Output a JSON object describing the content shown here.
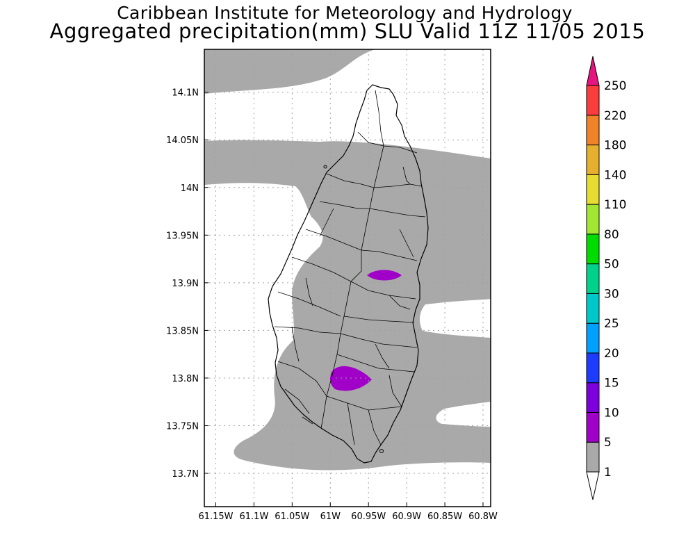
{
  "title_line1": "Caribbean Institute for Meteorology and Hydrology",
  "title_line2": "Aggregated precipitation(mm) SLU Valid 11Z 11/05 2015",
  "map": {
    "lon_ticks": [
      "61.15W",
      "61.1W",
      "61.05W",
      "61W",
      "60.95W",
      "60.9W",
      "60.85W",
      "60.8W"
    ],
    "lat_ticks": [
      "14.1N",
      "14.05N",
      "14N",
      "13.95N",
      "13.9N",
      "13.85N",
      "13.8N",
      "13.75N",
      "13.7N"
    ],
    "lon_range": [
      -61.165,
      -60.79
    ],
    "lat_range": [
      13.665,
      14.145
    ],
    "grid": true
  },
  "colorbar": {
    "levels": [
      "1",
      "5",
      "10",
      "15",
      "20",
      "25",
      "30",
      "50",
      "80",
      "110",
      "140",
      "180",
      "220",
      "250"
    ],
    "colors": [
      "#a9a9a9",
      "#a100c8",
      "#7d00dc",
      "#1e3cff",
      "#00a0ff",
      "#00c8c8",
      "#00d28c",
      "#00dc00",
      "#a0e632",
      "#e6dc32",
      "#e6af2d",
      "#f08228",
      "#fa3c3c",
      "#f00082"
    ],
    "below_color": "#ffffff",
    "above_color": "#e6147e"
  },
  "fill_colors": {
    "land_under_1": "#ffffff",
    "precip_1_5": "#a9a9a9",
    "precip_5_10": "#a100c8"
  }
}
